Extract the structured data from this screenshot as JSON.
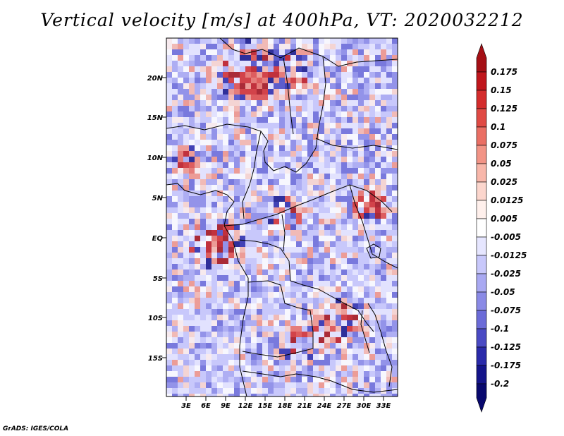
{
  "title": "Vertical velocity [m/s] at 400hPa, VT: 2020032212",
  "footer": "GrADS: IGES/COLA",
  "map": {
    "region": "Central and Southern Africa",
    "lat_labels": [
      "20N",
      "15N",
      "10N",
      "5N",
      "EQ",
      "5S",
      "10S",
      "15S"
    ],
    "lon_labels": [
      "3E",
      "6E",
      "9E",
      "12E",
      "15E",
      "18E",
      "21E",
      "24E",
      "27E",
      "30E",
      "33E"
    ]
  },
  "legend": {
    "labels": [
      "0.175",
      "0.15",
      "0.125",
      "0.1",
      "0.075",
      "0.05",
      "0.025",
      "0.0125",
      "0.005",
      "-0.005",
      "-0.0125",
      "-0.025",
      "-0.05",
      "-0.075",
      "-0.1",
      "-0.125",
      "-0.175",
      "-0.2"
    ],
    "colors": [
      "#a50f15",
      "#c0161c",
      "#d42c2c",
      "#e04a44",
      "#ea6f64",
      "#f29486",
      "#f8b7aa",
      "#fcd6cd",
      "#fff0ec",
      "#ffffff",
      "#e6e6ff",
      "#c8c8fb",
      "#a9a9f2",
      "#8a8ae6",
      "#6b6bd8",
      "#4a4ac4",
      "#2a2aaa",
      "#14148a",
      "#08086e"
    ]
  },
  "colors": {
    "map_bg": "#c9c9f4",
    "border": "#000000"
  }
}
